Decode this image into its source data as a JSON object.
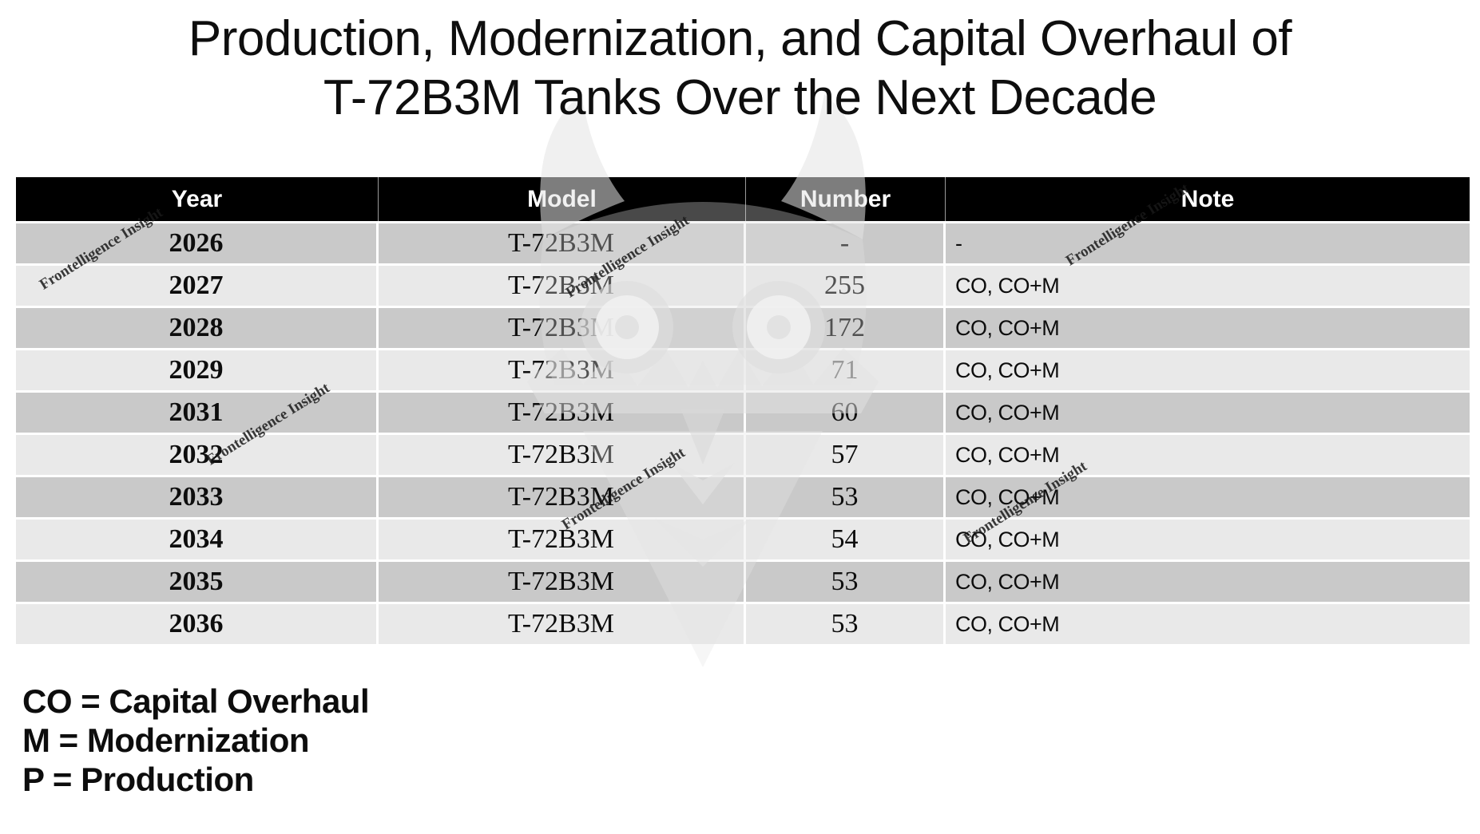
{
  "title": {
    "line1": "Production, Modernization, and Capital Overhaul of",
    "line2": "T-72B3M Tanks Over the Next Decade"
  },
  "table": {
    "headers": [
      "Year",
      "Model",
      "Number",
      "Note"
    ],
    "rows": [
      {
        "year": "2026",
        "model": "T-72B3M",
        "number": "-",
        "note": "-"
      },
      {
        "year": "2027",
        "model": "T-72B3M",
        "number": "255",
        "note": "CO, CO+M"
      },
      {
        "year": "2028",
        "model": "T-72B3M",
        "number": "172",
        "note": "CO, CO+M"
      },
      {
        "year": "2029",
        "model": "T-72B3M",
        "number": "71",
        "note": "CO, CO+M"
      },
      {
        "year": "2031",
        "model": "T-72B3M",
        "number": "60",
        "note": "CO, CO+M"
      },
      {
        "year": "2032",
        "model": "T-72B3M",
        "number": "57",
        "note": "CO, CO+M"
      },
      {
        "year": "2033",
        "model": "T-72B3M",
        "number": "53",
        "note": "CO, CO+M"
      },
      {
        "year": "2034",
        "model": "T-72B3M",
        "number": "54",
        "note": "CO, CO+M"
      },
      {
        "year": "2035",
        "model": "T-72B3M",
        "number": "53",
        "note": "CO, CO+M"
      },
      {
        "year": "2036",
        "model": "T-72B3M",
        "number": "53",
        "note": "CO, CO+M"
      }
    ]
  },
  "legend": {
    "items": [
      "CO = Capital Overhaul",
      "M = Modernization",
      "P = Production"
    ]
  },
  "watermark": {
    "text": "Frontelligence Insight",
    "logo": "owl-logo"
  },
  "colors": {
    "header_bg": "#000000",
    "header_text": "#ffffff",
    "row_dark": "#c9c9c9",
    "row_light": "#e9e9e9",
    "text": "#0d0d0d",
    "watermark_text": "#191919"
  },
  "chart_data": {
    "type": "table",
    "title": "Production, Modernization, and Capital Overhaul of T-72B3M Tanks Over the Next Decade",
    "columns": [
      "Year",
      "Model",
      "Number",
      "Note"
    ],
    "categories": [
      "2026",
      "2027",
      "2028",
      "2029",
      "2031",
      "2032",
      "2033",
      "2034",
      "2035",
      "2036"
    ],
    "series": [
      {
        "name": "Number",
        "values": [
          null,
          255,
          172,
          71,
          60,
          57,
          53,
          54,
          53,
          53
        ]
      }
    ],
    "model": "T-72B3M",
    "notes_per_row": [
      "-",
      "CO, CO+M",
      "CO, CO+M",
      "CO, CO+M",
      "CO, CO+M",
      "CO, CO+M",
      "CO, CO+M",
      "CO, CO+M",
      "CO, CO+M",
      "CO, CO+M"
    ],
    "footnotes": [
      "CO = Capital Overhaul",
      "M = Modernization",
      "P = Production"
    ]
  }
}
